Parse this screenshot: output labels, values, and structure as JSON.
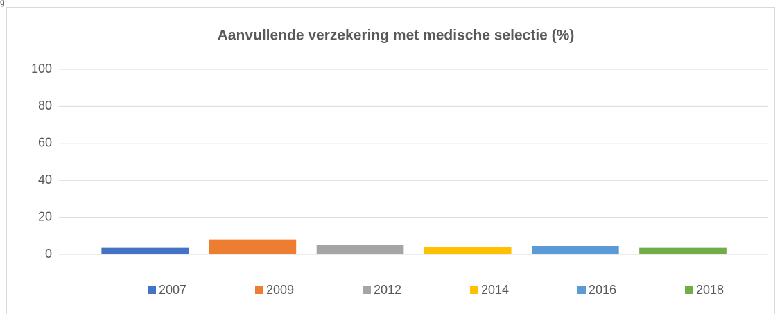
{
  "caption": "g",
  "chart_data": {
    "type": "bar",
    "title": "Aanvullende verzekering met medische selectie (%)",
    "categories": [
      null
    ],
    "series": [
      {
        "name": "2007",
        "color": "#4472c4",
        "values": [
          3.5
        ]
      },
      {
        "name": "2009",
        "color": "#ed7d31",
        "values": [
          8
        ]
      },
      {
        "name": "2012",
        "color": "#a5a5a5",
        "values": [
          5
        ]
      },
      {
        "name": "2014",
        "color": "#ffc000",
        "values": [
          4
        ]
      },
      {
        "name": "2016",
        "color": "#5b9bd5",
        "values": [
          4.5
        ]
      },
      {
        "name": "2018",
        "color": "#70ad47",
        "values": [
          3.5
        ]
      }
    ],
    "ylim": [
      0,
      100
    ],
    "yticks": [
      0,
      20,
      40,
      60,
      80,
      100
    ],
    "grid": true,
    "legend": "bottom"
  }
}
